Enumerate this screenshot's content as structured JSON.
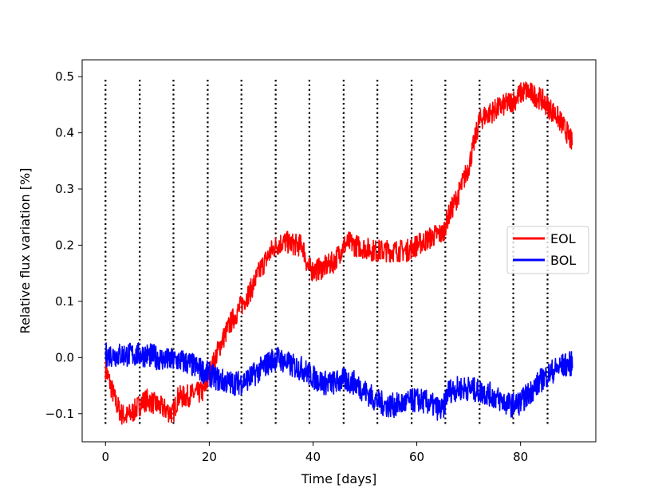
{
  "chart_data": {
    "type": "line",
    "title": "",
    "xlabel": "Time [days]",
    "ylabel": "Relative flux variation [%]",
    "xlim": [
      -4.5,
      94.5
    ],
    "ylim": [
      -0.15,
      0.53
    ],
    "x_ticks": [
      0,
      20,
      40,
      60,
      80
    ],
    "y_ticks": [
      -0.1,
      0.0,
      0.1,
      0.2,
      0.3,
      0.4,
      0.5
    ],
    "y_tick_labels": [
      "−0.1",
      "0.0",
      "0.1",
      "0.2",
      "0.3",
      "0.4",
      "0.5"
    ],
    "grid": false,
    "legend": {
      "placement": "center-right",
      "entries": [
        {
          "name": "EOL",
          "color": "#ff0000"
        },
        {
          "name": "BOL",
          "color": "#0000ff"
        }
      ]
    },
    "vertical_markers": {
      "style": "dotted",
      "color": "#000000",
      "x": [
        0,
        6.6,
        13.1,
        19.7,
        26.2,
        32.8,
        39.3,
        45.9,
        52.4,
        59.0,
        65.5,
        72.1,
        78.6,
        85.2
      ],
      "y_range": [
        -0.118,
        0.498
      ]
    },
    "series": [
      {
        "name": "EOL",
        "color": "#ff0000",
        "noise_band": 0.02,
        "x": [
          0,
          1,
          2,
          3,
          4,
          5,
          6,
          7,
          8,
          9,
          10,
          11,
          12,
          13,
          14,
          15,
          16,
          17,
          18,
          19,
          20,
          22,
          24,
          26,
          28,
          30,
          32,
          33,
          34,
          35,
          36,
          37,
          38,
          39,
          40,
          41,
          42,
          43,
          44,
          45,
          46,
          47,
          48,
          50,
          52,
          54,
          56,
          58,
          59,
          60,
          62,
          64,
          65,
          66,
          68,
          70,
          71,
          72,
          73,
          74,
          75,
          76,
          77,
          78,
          79,
          80,
          81,
          82,
          83,
          84,
          85,
          86,
          87,
          88,
          89,
          90
        ],
        "y": [
          -0.02,
          -0.05,
          -0.08,
          -0.1,
          -0.105,
          -0.1,
          -0.09,
          -0.08,
          -0.075,
          -0.08,
          -0.085,
          -0.09,
          -0.095,
          -0.1,
          -0.07,
          -0.07,
          -0.068,
          -0.065,
          -0.063,
          -0.06,
          -0.03,
          0.02,
          0.06,
          0.09,
          0.12,
          0.16,
          0.19,
          0.2,
          0.205,
          0.205,
          0.202,
          0.2,
          0.2,
          0.16,
          0.155,
          0.157,
          0.16,
          0.165,
          0.17,
          0.185,
          0.2,
          0.205,
          0.2,
          0.195,
          0.19,
          0.19,
          0.19,
          0.19,
          0.195,
          0.2,
          0.21,
          0.22,
          0.22,
          0.25,
          0.29,
          0.34,
          0.38,
          0.42,
          0.43,
          0.435,
          0.44,
          0.445,
          0.45,
          0.455,
          0.46,
          0.47,
          0.475,
          0.47,
          0.465,
          0.46,
          0.45,
          0.44,
          0.43,
          0.415,
          0.4,
          0.38
        ]
      },
      {
        "name": "BOL",
        "color": "#0000ff",
        "noise_band": 0.022,
        "x": [
          0,
          2,
          4,
          6,
          8,
          10,
          12,
          14,
          16,
          18,
          20,
          22,
          24,
          26,
          28,
          30,
          32,
          33,
          34,
          36,
          38,
          40,
          42,
          44,
          46,
          48,
          50,
          52,
          54,
          56,
          58,
          60,
          62,
          64,
          65,
          66,
          68,
          70,
          72,
          74,
          76,
          78,
          80,
          82,
          84,
          86,
          88,
          90
        ],
        "y": [
          0.005,
          0.005,
          0.005,
          0.005,
          0.005,
          0.0,
          -0.005,
          -0.005,
          -0.01,
          -0.02,
          -0.03,
          -0.04,
          -0.045,
          -0.045,
          -0.035,
          -0.02,
          -0.005,
          0.0,
          -0.005,
          -0.015,
          -0.02,
          -0.035,
          -0.045,
          -0.045,
          -0.04,
          -0.045,
          -0.06,
          -0.075,
          -0.085,
          -0.085,
          -0.08,
          -0.075,
          -0.08,
          -0.09,
          -0.095,
          -0.06,
          -0.055,
          -0.055,
          -0.06,
          -0.065,
          -0.075,
          -0.085,
          -0.08,
          -0.06,
          -0.04,
          -0.025,
          -0.015,
          -0.01
        ]
      }
    ]
  }
}
